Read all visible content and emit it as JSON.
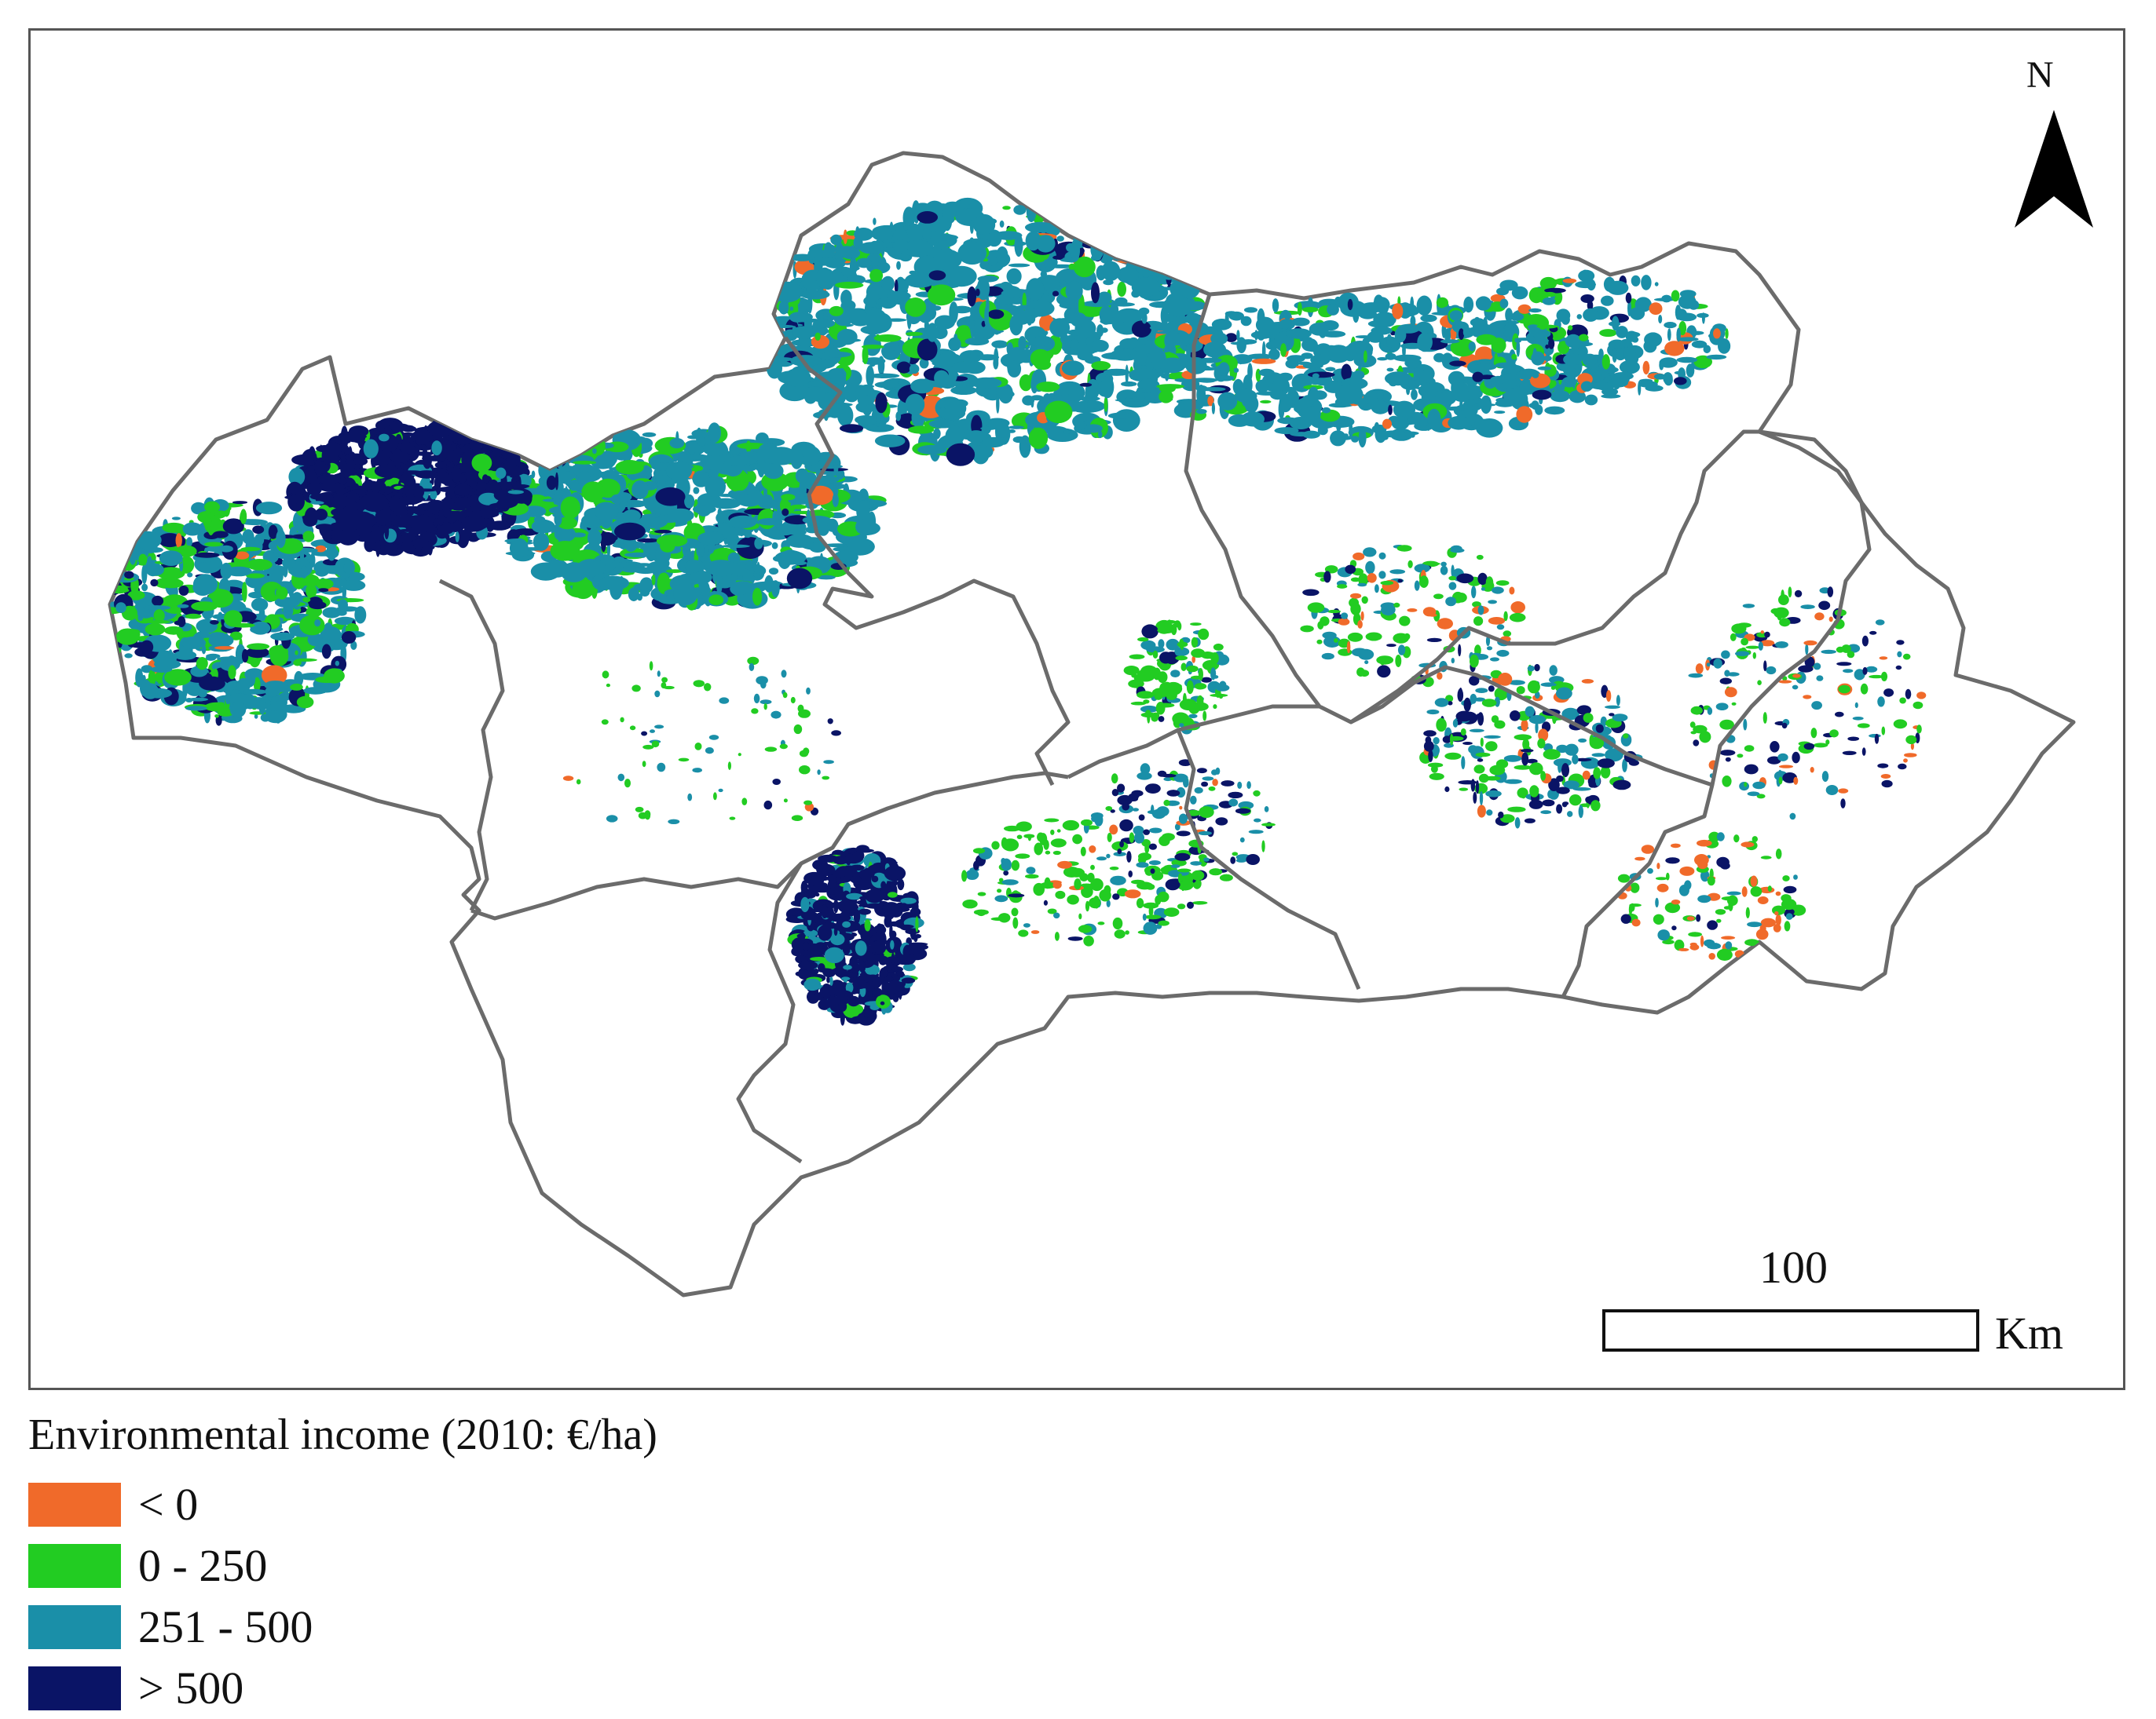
{
  "map": {
    "north_label": "N",
    "scale_label": "100",
    "scale_unit": "Km"
  },
  "legend": {
    "title": "Environmental income (2010: €/ha)",
    "items": [
      {
        "label": "< 0",
        "color": "#f06a2a"
      },
      {
        "label": "0 - 250",
        "color": "#22cc22"
      },
      {
        "label": "251 - 500",
        "color": "#1a8fa8"
      },
      {
        "label": "> 500",
        "color": "#0a1466"
      }
    ]
  },
  "colors": {
    "boundary": "#6b6b6b",
    "frame": "#555555"
  }
}
